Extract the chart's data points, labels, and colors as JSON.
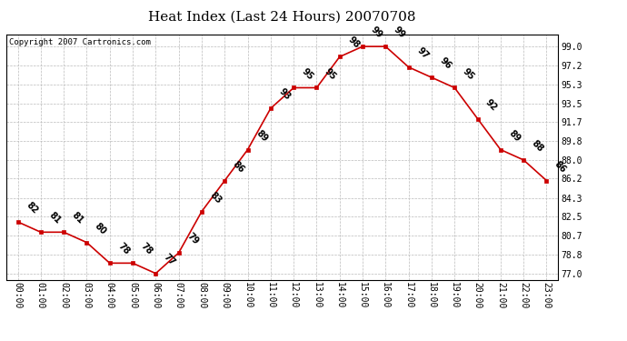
{
  "title": "Heat Index (Last 24 Hours) 20070708",
  "copyright": "Copyright 2007 Cartronics.com",
  "hours": [
    0,
    1,
    2,
    3,
    4,
    5,
    6,
    7,
    8,
    9,
    10,
    11,
    12,
    13,
    14,
    15,
    16,
    17,
    18,
    19,
    20,
    21,
    22,
    23
  ],
  "values": [
    82,
    81,
    81,
    80,
    78,
    78,
    77,
    79,
    83,
    86,
    89,
    93,
    95,
    95,
    98,
    99,
    99,
    97,
    96,
    95,
    92,
    89,
    88,
    86
  ],
  "x_labels": [
    "00:00",
    "01:00",
    "02:00",
    "03:00",
    "04:00",
    "05:00",
    "06:00",
    "07:00",
    "08:00",
    "09:00",
    "10:00",
    "11:00",
    "12:00",
    "13:00",
    "14:00",
    "15:00",
    "16:00",
    "17:00",
    "18:00",
    "19:00",
    "20:00",
    "21:00",
    "22:00",
    "23:00"
  ],
  "y_ticks": [
    77.0,
    78.8,
    80.7,
    82.5,
    84.3,
    86.2,
    88.0,
    89.8,
    91.7,
    93.5,
    95.3,
    97.2,
    99.0
  ],
  "ylim": [
    76.4,
    100.2
  ],
  "xlim": [
    -0.5,
    23.5
  ],
  "line_color": "#cc0000",
  "marker_color": "#cc0000",
  "bg_color": "#ffffff",
  "grid_color": "#bbbbbb",
  "title_fontsize": 11,
  "copyright_fontsize": 6.5,
  "label_fontsize": 7,
  "tick_fontsize": 7,
  "annotation_rotation": -45,
  "figwidth": 6.9,
  "figheight": 3.75,
  "dpi": 100
}
